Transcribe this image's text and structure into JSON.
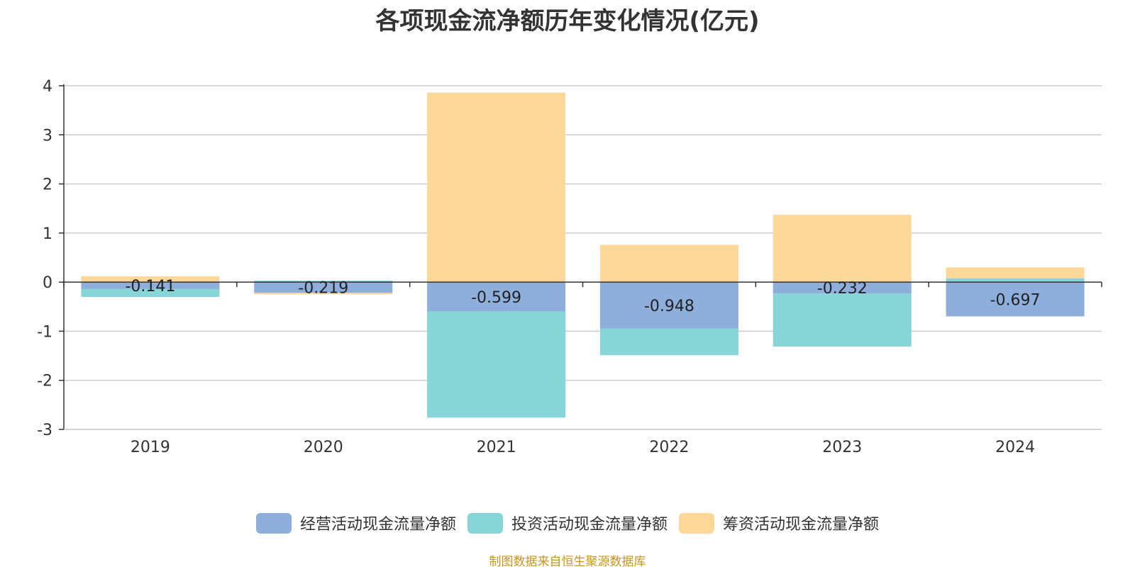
{
  "chart_data": {
    "type": "bar",
    "stacked": true,
    "title": "各项现金流净额历年变化情况(亿元)",
    "categories": [
      "2019",
      "2020",
      "2021",
      "2022",
      "2023",
      "2024"
    ],
    "series": [
      {
        "name": "经营活动现金流量净额",
        "color": "#8eaedb",
        "values": [
          -0.141,
          -0.219,
          -0.599,
          -0.948,
          -0.232,
          -0.697
        ],
        "labels": [
          "-0.141",
          "-0.219",
          "-0.599",
          "-0.948",
          "-0.232",
          "-0.697"
        ]
      },
      {
        "name": "投资活动现金流量净额",
        "color": "#88d5d8",
        "values": [
          -0.16,
          0.03,
          -2.16,
          -0.54,
          -1.08,
          0.08
        ]
      },
      {
        "name": "筹资活动现金流量净额",
        "color": "#fed899",
        "values": [
          0.12,
          -0.03,
          3.86,
          0.76,
          1.37,
          0.22
        ]
      }
    ],
    "yticks": [
      "4",
      "3",
      "2",
      "1",
      "0",
      "-1",
      "-2",
      "-3"
    ],
    "ylim": [
      -3,
      4
    ],
    "grid": true,
    "legend": "bottom-center"
  },
  "source": "制图数据来自恒生聚源数据库"
}
